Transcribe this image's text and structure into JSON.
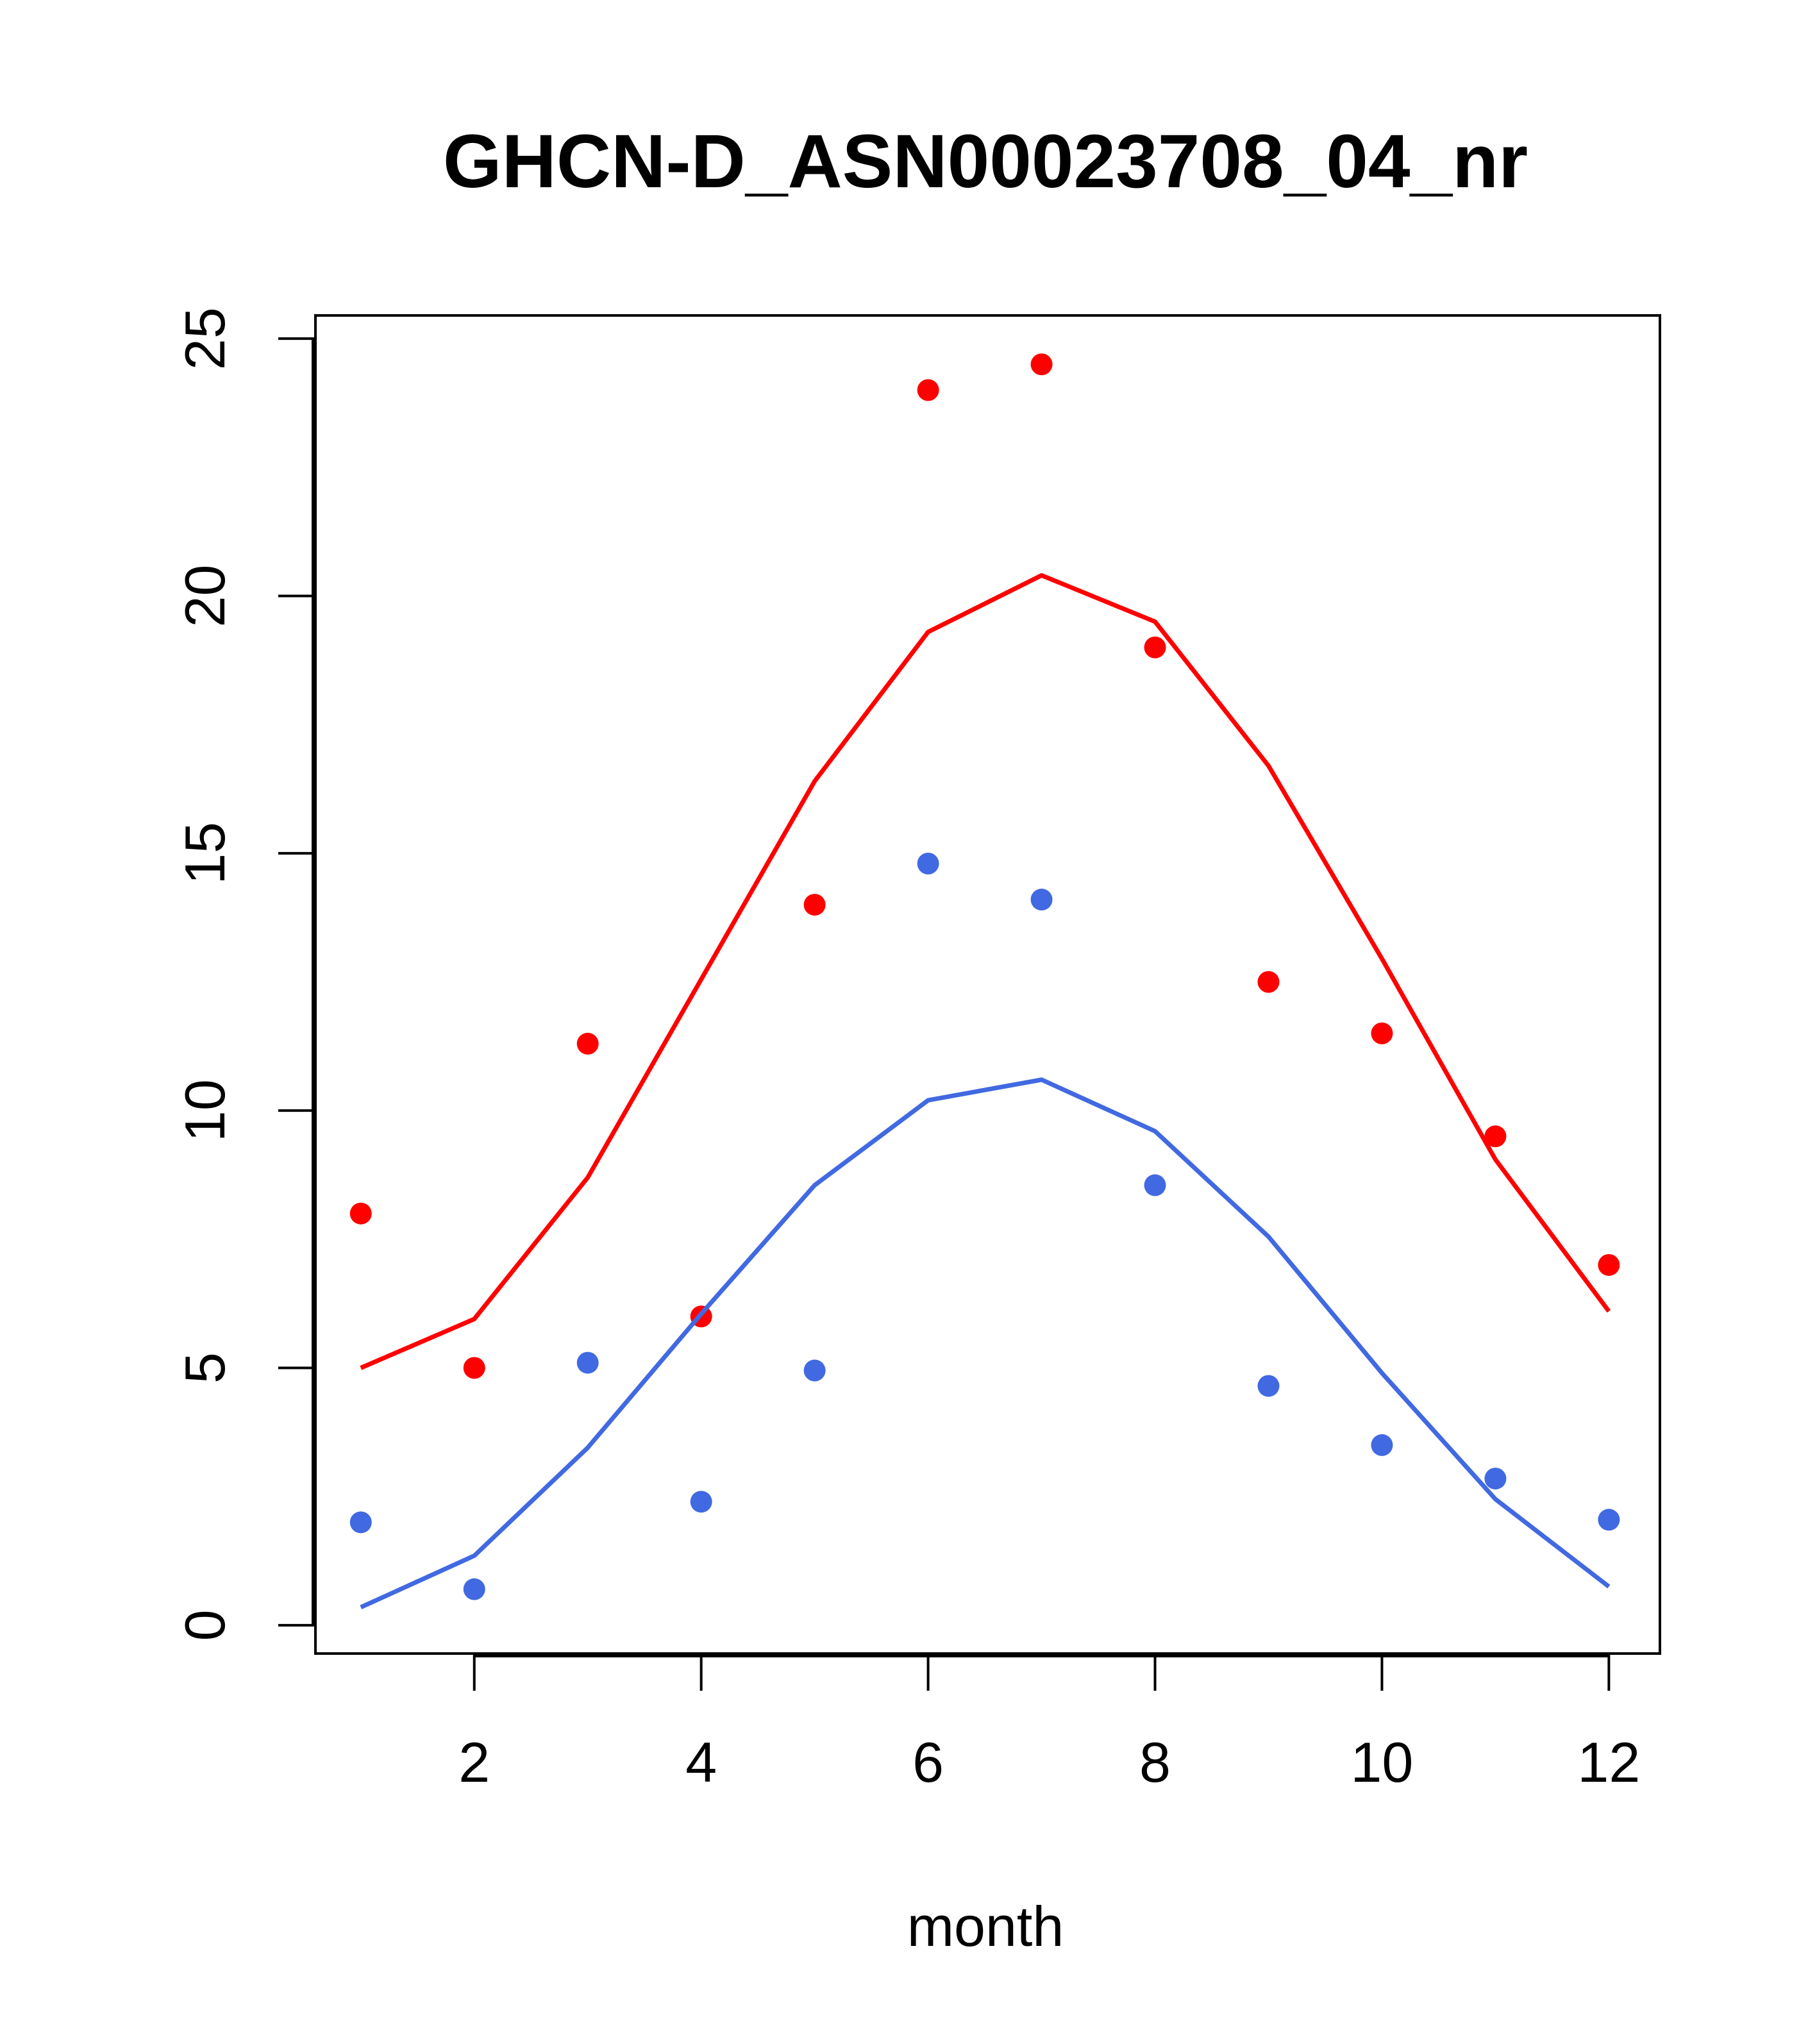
{
  "chart_data": {
    "type": "line",
    "title": "GHCN-D_ASN00023708_04_nr",
    "xlabel": "month",
    "ylabel": "",
    "xlim": [
      0.6,
      12.45
    ],
    "ylim": [
      -0.55,
      25.45
    ],
    "x_ticks": [
      2,
      4,
      6,
      8,
      10,
      12
    ],
    "y_ticks": [
      0,
      5,
      10,
      15,
      20,
      25
    ],
    "grid": false,
    "legend": "none",
    "x": [
      1,
      2,
      3,
      4,
      5,
      6,
      7,
      8,
      9,
      10,
      11,
      12
    ],
    "series": [
      {
        "kind": "line",
        "color": "#ff0000",
        "values": [
          5.0,
          5.95,
          8.7,
          12.55,
          16.4,
          19.3,
          20.4,
          19.5,
          16.7,
          12.95,
          9.05,
          6.1
        ]
      },
      {
        "kind": "points",
        "color": "#ff0000",
        "values": [
          8.0,
          5.0,
          11.3,
          6.0,
          14.0,
          24.0,
          24.5,
          19.0,
          12.5,
          11.5,
          9.5,
          7.0
        ]
      },
      {
        "kind": "line",
        "color": "#4169e1",
        "values": [
          0.35,
          1.35,
          3.45,
          6.05,
          8.55,
          10.2,
          10.6,
          9.6,
          7.55,
          4.9,
          2.45,
          0.75
        ]
      },
      {
        "kind": "points",
        "color": "#4169e1",
        "values": [
          2.0,
          0.7,
          5.1,
          2.4,
          4.95,
          14.8,
          14.1,
          8.55,
          4.65,
          3.5,
          2.85,
          2.05
        ]
      }
    ]
  }
}
